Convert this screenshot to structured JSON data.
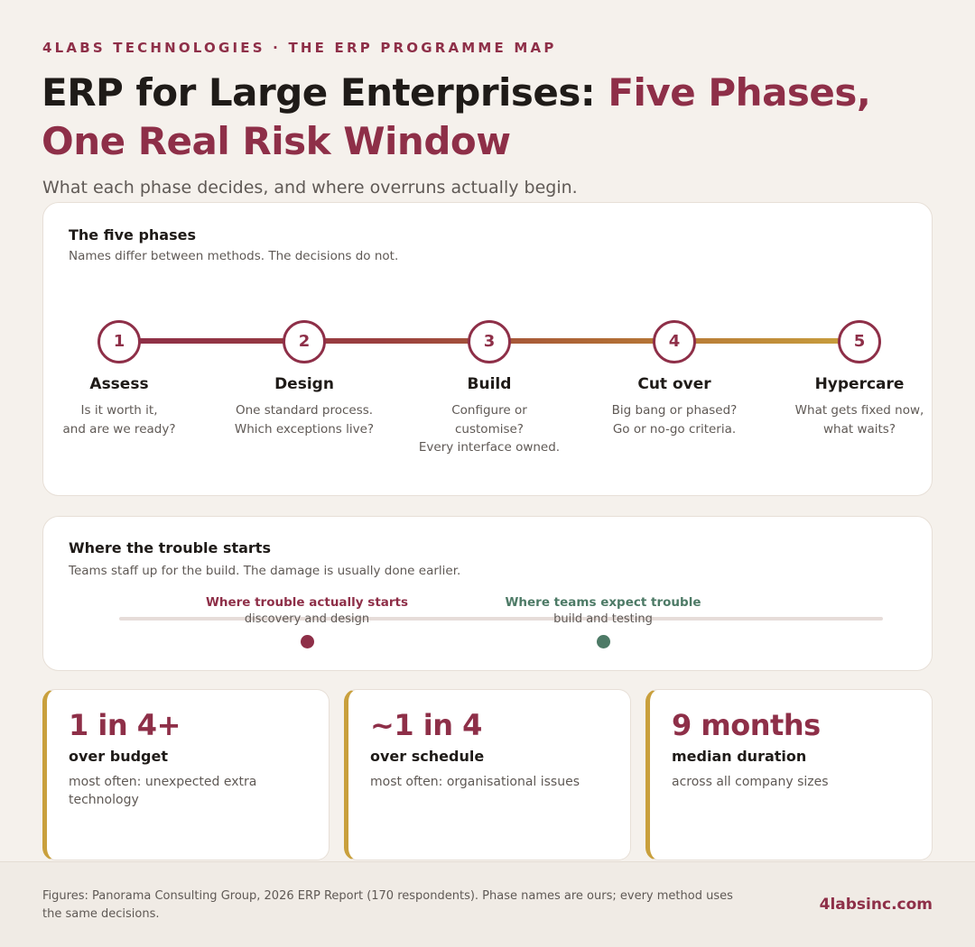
{
  "header": {
    "eyebrow": "4LABS TECHNOLOGIES · THE ERP PROGRAMME MAP",
    "title_main": "ERP for Large Enterprises: ",
    "title_accent": "Five Phases, One Real Risk Window",
    "subtitle": "What each phase decides, and where overruns actually begin."
  },
  "phases_card": {
    "title": "The five phases",
    "subtitle": "Names differ between methods. The decisions do not.",
    "phases": [
      {
        "num": "1",
        "name": "Assess",
        "desc": "Is it worth it,\nand are we ready?"
      },
      {
        "num": "2",
        "name": "Design",
        "desc": "One standard process.\nWhich exceptions live?"
      },
      {
        "num": "3",
        "name": "Build",
        "desc": "Configure or\ncustomise?\nEvery interface owned."
      },
      {
        "num": "4",
        "name": "Cut over",
        "desc": "Big bang or phased?\nGo or no-go criteria."
      },
      {
        "num": "5",
        "name": "Hypercare",
        "desc": "What gets fixed now,\nwhat waits?"
      }
    ],
    "line_gradient": [
      "#8e2f48",
      "#c9a03d"
    ]
  },
  "trouble_card": {
    "title": "Where the trouble starts",
    "subtitle": "Teams staff up for the build. The damage is usually done earlier.",
    "markers": [
      {
        "label": "Where trouble actually starts",
        "sub": "discovery and design",
        "color": "#8e2f48"
      },
      {
        "label": "Where teams expect trouble",
        "sub": "build and testing",
        "color": "#4d7a66"
      }
    ]
  },
  "stats": [
    {
      "big": "1 in 4+",
      "label": "over budget",
      "note": "most often: unexpected extra technology"
    },
    {
      "big": "~1 in 4",
      "label": "over schedule",
      "note": "most often: organisational issues"
    },
    {
      "big": "9 months",
      "label": "median duration",
      "note": "across all company sizes"
    }
  ],
  "footer": {
    "note": "Figures: Panorama Consulting Group, 2026 ERP Report (170 respondents). Phase names are ours; every method uses the same decisions.",
    "url": "4labsinc.com"
  },
  "colors": {
    "accent": "#8e2f48",
    "gold": "#c9a03d",
    "green": "#4d7a66",
    "background": "#f5f1ec"
  }
}
